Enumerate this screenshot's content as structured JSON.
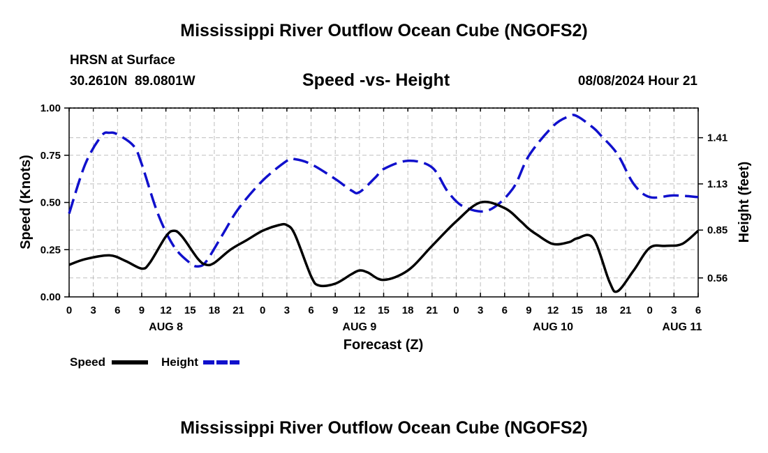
{
  "page_title": "Mississippi River Outflow Ocean Cube (NGOFS2)",
  "page_title_bottom": "Mississippi River Outflow Ocean Cube (NGOFS2)",
  "station": {
    "name": "HRSN at Surface",
    "coords": "30.2610N  89.0801W"
  },
  "timestamp": "08/08/2024 Hour 21",
  "colors": {
    "speed": "#000000",
    "height": "#1010cc",
    "grid": "#bdbdbd"
  },
  "chart_data": {
    "type": "line",
    "title": "Speed -vs- Height",
    "xlabel": "Forecast (Z)",
    "ylabel": "Speed (Knots)",
    "y2label": "Height (feet)",
    "x_unit": "hours since AUG 8 00Z",
    "xlim": [
      0,
      78
    ],
    "ylim": [
      0,
      1
    ],
    "y2lim": [
      0.445,
      1.59
    ],
    "x_ticks": [
      0,
      3,
      6,
      9,
      12,
      15,
      18,
      21,
      24,
      27,
      30,
      33,
      36,
      39,
      42,
      45,
      48,
      51,
      54,
      57,
      60,
      63,
      66,
      69,
      72,
      75,
      78
    ],
    "x_tick_labels": [
      "0",
      "3",
      "6",
      "9",
      "12",
      "15",
      "18",
      "21",
      "0",
      "3",
      "6",
      "9",
      "12",
      "15",
      "18",
      "21",
      "0",
      "3",
      "6",
      "9",
      "12",
      "15",
      "18",
      "21",
      "0",
      "3",
      "6"
    ],
    "date_labels": [
      {
        "label": "AUG 8",
        "x": 12
      },
      {
        "label": "AUG 9",
        "x": 36
      },
      {
        "label": "AUG 10",
        "x": 60
      },
      {
        "label": "AUG 11",
        "x": 76
      }
    ],
    "y_ticks": [
      0,
      0.25,
      0.5,
      0.75,
      1.0
    ],
    "y_tick_labels": [
      "0.00",
      "0.25",
      "0.50",
      "0.75",
      "1.00"
    ],
    "y2_ticks": [
      0.56,
      0.85,
      1.13,
      1.41
    ],
    "y2_tick_labels": [
      "0.56",
      "0.85",
      "1.13",
      "1.41"
    ],
    "series": [
      {
        "name": "Speed",
        "axis": "left",
        "style": "solid",
        "x": [
          0,
          2,
          5,
          7,
          9,
          10,
          12,
          13,
          14,
          16,
          17,
          18,
          20,
          22,
          24,
          26,
          27,
          28,
          30,
          31,
          33,
          35,
          36,
          37,
          39,
          42,
          45,
          48,
          51,
          54,
          56,
          57,
          58,
          60,
          62,
          63,
          65,
          67,
          68,
          70,
          72,
          74,
          76,
          78
        ],
        "values": [
          0.17,
          0.2,
          0.22,
          0.19,
          0.15,
          0.18,
          0.32,
          0.35,
          0.32,
          0.2,
          0.17,
          0.18,
          0.25,
          0.3,
          0.35,
          0.38,
          0.38,
          0.33,
          0.11,
          0.06,
          0.07,
          0.12,
          0.14,
          0.13,
          0.09,
          0.14,
          0.27,
          0.4,
          0.5,
          0.47,
          0.4,
          0.36,
          0.33,
          0.28,
          0.29,
          0.31,
          0.31,
          0.08,
          0.03,
          0.14,
          0.26,
          0.27,
          0.28,
          0.35
        ]
      },
      {
        "name": "Height",
        "axis": "right",
        "style": "dashed",
        "x": [
          0,
          2,
          4,
          5,
          6,
          8,
          9,
          11,
          13,
          15,
          16,
          17,
          19,
          21,
          24,
          27,
          28,
          30,
          33,
          35,
          36,
          38,
          39,
          42,
          45,
          47,
          49,
          52,
          55,
          57,
          60,
          62,
          63,
          65,
          66,
          68,
          70,
          72,
          75,
          78
        ],
        "values": [
          0.95,
          1.25,
          1.42,
          1.44,
          1.43,
          1.36,
          1.25,
          0.95,
          0.75,
          0.65,
          0.63,
          0.66,
          0.82,
          0.98,
          1.15,
          1.27,
          1.28,
          1.25,
          1.16,
          1.09,
          1.08,
          1.17,
          1.22,
          1.27,
          1.23,
          1.08,
          0.99,
          0.97,
          1.1,
          1.3,
          1.48,
          1.54,
          1.54,
          1.47,
          1.42,
          1.31,
          1.13,
          1.05,
          1.06,
          1.05
        ]
      }
    ],
    "legend": [
      {
        "name": "Speed",
        "style": "solid"
      },
      {
        "name": "Height",
        "style": "dashed"
      }
    ],
    "legend_position": "bottom-left",
    "grid": true
  }
}
